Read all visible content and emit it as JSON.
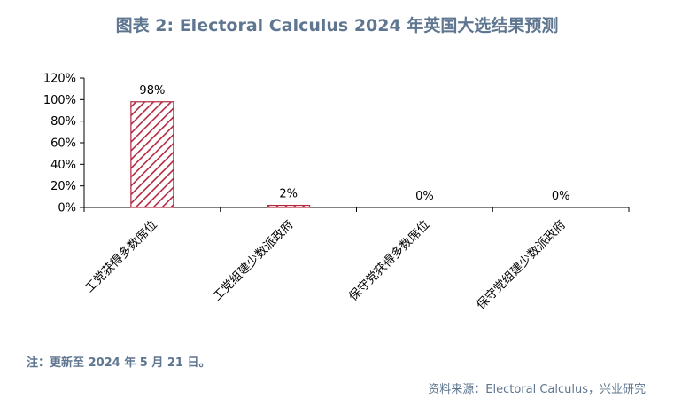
{
  "title": "图表 2:   Electoral Calculus 2024 年英国大选结果预测",
  "note": "注：更新至 2024 年 5 月 21 日。",
  "source": "资料来源：Electoral Calculus，兴业研究",
  "colors": {
    "bar_stroke": "#b3283f",
    "bar_hatch": "#b3283f",
    "text": "#5f7690",
    "axis": "#000000"
  },
  "chart_data": {
    "type": "bar",
    "categories": [
      "工党获得多数席位",
      "工党组建少数派政府",
      "保守党获得多数席位",
      "保守党组建少数派政府"
    ],
    "values": [
      98,
      2,
      0,
      0
    ],
    "data_labels": [
      "98%",
      "2%",
      "0%",
      "0%"
    ],
    "ylim": [
      0,
      120
    ],
    "yticks": [
      "0%",
      "20%",
      "40%",
      "60%",
      "80%",
      "100%",
      "120%"
    ],
    "grid": false,
    "legend": "none"
  }
}
